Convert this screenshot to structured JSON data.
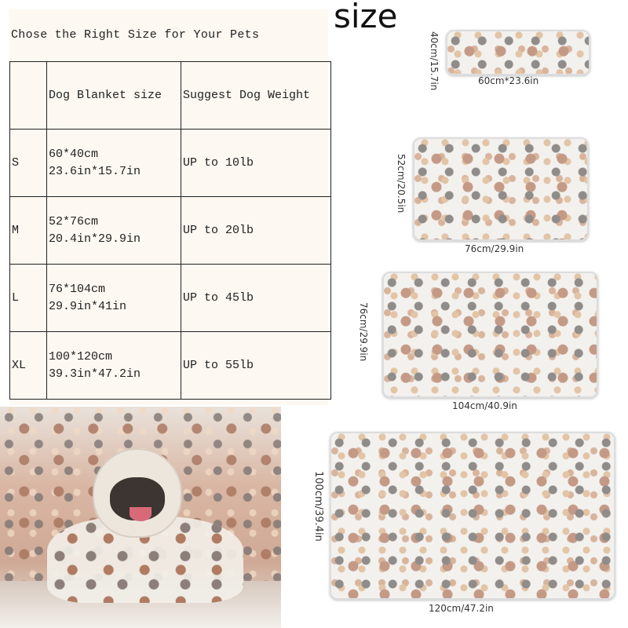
{
  "heading": "size",
  "size_table": {
    "title": "Chose the Right Size for Your Pets",
    "headers": [
      "",
      "Dog Blanket size",
      "Suggest Dog Weight"
    ],
    "rows": [
      {
        "size": "S",
        "cm": "60*40cm",
        "in": "23.6in*15.7in",
        "weight": "UP to 10lb"
      },
      {
        "size": "M",
        "cm": "52*76cm",
        "in": "20.4in*29.9in",
        "weight": "UP to 20lb"
      },
      {
        "size": "L",
        "cm": "76*104cm",
        "in": "29.9in*41in",
        "weight": "UP to 45lb"
      },
      {
        "size": "XL",
        "cm": "100*120cm",
        "in": "39.3in*47.2in",
        "weight": "UP to 55lb"
      }
    ]
  },
  "blankets": [
    {
      "width_label": "60cm*23.6in",
      "height_label": "40cm/15.7in"
    },
    {
      "width_label": "76cm/29.9in",
      "height_label": "52cm/20.5in"
    },
    {
      "width_label": "104cm/40.9in",
      "height_label": "76cm/29.9in"
    },
    {
      "width_label": "120cm/47.2in",
      "height_label": "100cm/39.4in"
    }
  ],
  "colors": {
    "paw_gray": "#8f8c8a",
    "paw_brown": "#c49a86",
    "paw_beige": "#e2c4a6",
    "fleece": "#f3f1ee"
  }
}
